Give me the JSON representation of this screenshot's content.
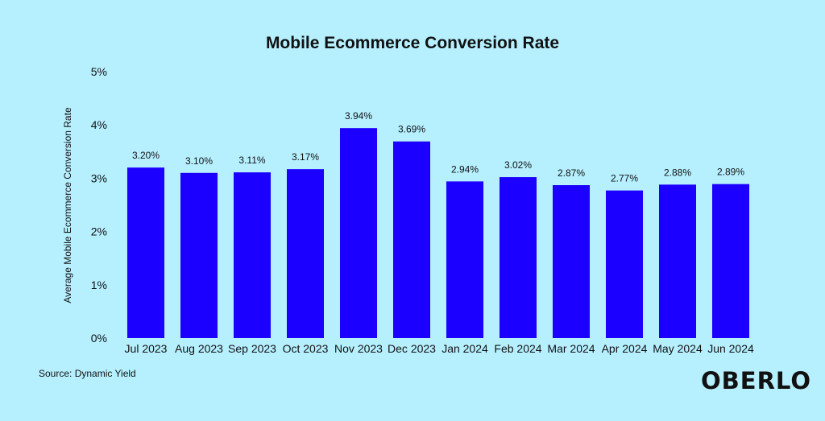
{
  "chart_data": {
    "type": "bar",
    "title": "Mobile Ecommerce Conversion Rate",
    "ylabel": "Average Mobile Ecommerce Conversion Rate",
    "xlabel": "",
    "ylim": [
      0,
      5
    ],
    "y_ticks": [
      "0%",
      "1%",
      "2%",
      "3%",
      "4%",
      "5%"
    ],
    "categories": [
      "Jul 2023",
      "Aug 2023",
      "Sep 2023",
      "Oct 2023",
      "Nov 2023",
      "Dec 2023",
      "Jan 2024",
      "Feb 2024",
      "Mar 2024",
      "Apr 2024",
      "May 2024",
      "Jun 2024"
    ],
    "values": [
      3.2,
      3.1,
      3.11,
      3.17,
      3.94,
      3.69,
      2.94,
      3.02,
      2.87,
      2.77,
      2.88,
      2.89
    ],
    "value_labels": [
      "3.20%",
      "3.10%",
      "3.11%",
      "3.17%",
      "3.94%",
      "3.69%",
      "2.94%",
      "3.02%",
      "2.87%",
      "2.77%",
      "2.88%",
      "2.89%"
    ],
    "grid": false,
    "colors": {
      "bar": "#1b00ff",
      "background": "#b6f0ff",
      "text": "#111111"
    }
  },
  "source": "Source: Dynamic Yield",
  "brand": "OBERLO"
}
